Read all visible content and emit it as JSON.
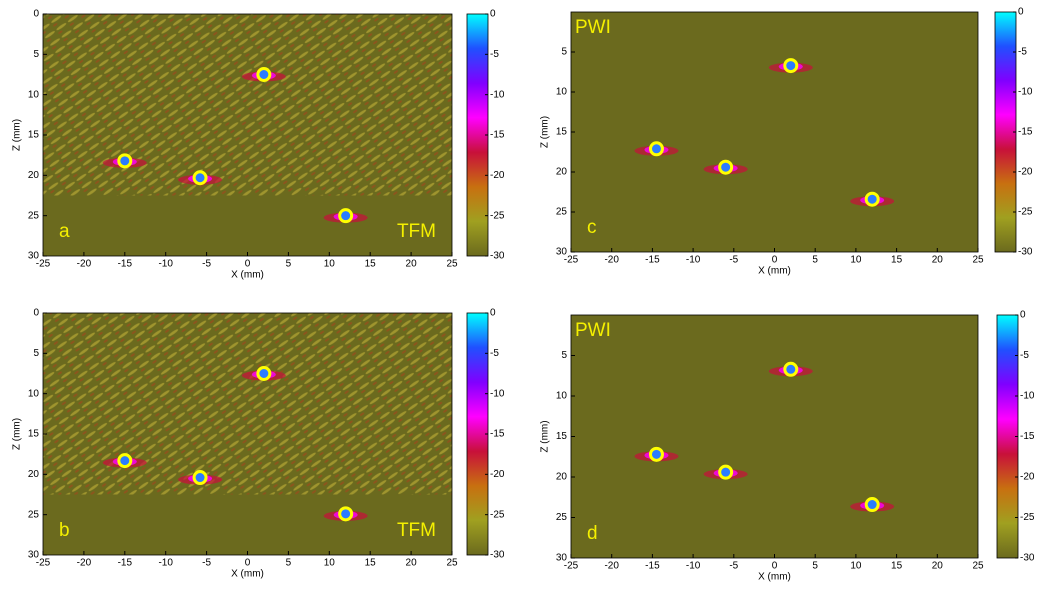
{
  "chart_data": [
    {
      "type": "scatter",
      "panel_label": "a",
      "method_label": "TFM",
      "method_corner": "bottom-right",
      "x_label": "X (mm)",
      "y_label": "Z (mm)",
      "x": [
        2,
        -15,
        -5.8,
        12
      ],
      "values": [
        7.5,
        18.2,
        20.3,
        25
      ],
      "xlim": [
        -25,
        25
      ],
      "ylim": [
        0,
        30
      ],
      "xticks": [
        -25,
        -20,
        -15,
        -10,
        -5,
        0,
        5,
        10,
        15,
        20,
        25
      ],
      "yticks": [
        0,
        5,
        10,
        15,
        20,
        25,
        30
      ],
      "clim": [
        -30,
        0
      ],
      "cticks": [
        0,
        -5,
        -10,
        -15,
        -20,
        -25,
        -30
      ],
      "background": "#6b6a1e",
      "marker_color": "#ffff00",
      "texture": true,
      "colormap": [
        "#00ffff",
        "#2050ff",
        "#8000ff",
        "#ff00ff",
        "#c8103a",
        "#c87010",
        "#a0a020",
        "#6b6a1e"
      ]
    },
    {
      "type": "scatter",
      "panel_label": "c",
      "method_label": "PWI",
      "method_corner": "top-left",
      "x_label": "X (mm)",
      "y_label": "Z (mm)",
      "x": [
        2,
        -14.5,
        -6,
        12
      ],
      "values": [
        6.7,
        17.1,
        19.4,
        23.4
      ],
      "xlim": [
        -25,
        25
      ],
      "ylim": [
        0,
        30
      ],
      "xticks": [
        -25,
        -20,
        -15,
        -10,
        -5,
        0,
        5,
        10,
        15,
        20,
        25
      ],
      "yticks": [
        5,
        10,
        15,
        20,
        25,
        30
      ],
      "clim": [
        -30,
        0
      ],
      "cticks": [
        0,
        -5,
        -10,
        -15,
        -20,
        -25,
        -30
      ],
      "background": "#6b6a1e",
      "marker_color": "#ffff00",
      "texture": false,
      "colormap": [
        "#00ffff",
        "#2050ff",
        "#8000ff",
        "#ff00ff",
        "#c8103a",
        "#c87010",
        "#a0a020",
        "#6b6a1e"
      ]
    },
    {
      "type": "scatter",
      "panel_label": "b",
      "method_label": "TFM",
      "method_corner": "bottom-right",
      "x_label": "X (mm)",
      "y_label": "Z (mm)",
      "x": [
        2,
        -15,
        -5.8,
        12
      ],
      "values": [
        7.5,
        18.3,
        20.4,
        24.9
      ],
      "xlim": [
        -25,
        25
      ],
      "ylim": [
        0,
        30
      ],
      "xticks": [
        -25,
        -20,
        -15,
        -10,
        -5,
        0,
        5,
        10,
        15,
        20,
        25
      ],
      "yticks": [
        0,
        5,
        10,
        15,
        20,
        25,
        30
      ],
      "clim": [
        -30,
        0
      ],
      "cticks": [
        0,
        -5,
        -10,
        -15,
        -20,
        -25,
        -30
      ],
      "background": "#6b6a1e",
      "marker_color": "#ffff00",
      "texture": true,
      "colormap": [
        "#00ffff",
        "#2050ff",
        "#8000ff",
        "#ff00ff",
        "#c8103a",
        "#c87010",
        "#a0a020",
        "#6b6a1e"
      ]
    },
    {
      "type": "scatter",
      "panel_label": "d",
      "method_label": "PWI",
      "method_corner": "top-left",
      "x_label": "X (mm)",
      "y_label": "Z (mm)",
      "x": [
        2,
        -14.5,
        -6,
        12
      ],
      "values": [
        6.7,
        17.2,
        19.4,
        23.4
      ],
      "xlim": [
        -25,
        25
      ],
      "ylim": [
        0,
        30
      ],
      "xticks": [
        -25,
        -20,
        -15,
        -10,
        -5,
        0,
        5,
        10,
        15,
        20,
        25
      ],
      "yticks": [
        5,
        10,
        15,
        20,
        25,
        30
      ],
      "clim": [
        -30,
        0
      ],
      "cticks": [
        0,
        -5,
        -10,
        -15,
        -20,
        -25,
        -30
      ],
      "background": "#6b6a1e",
      "marker_color": "#ffff00",
      "texture": false,
      "colormap": [
        "#00ffff",
        "#2050ff",
        "#8000ff",
        "#ff00ff",
        "#c8103a",
        "#c87010",
        "#a0a020",
        "#6b6a1e"
      ]
    }
  ]
}
